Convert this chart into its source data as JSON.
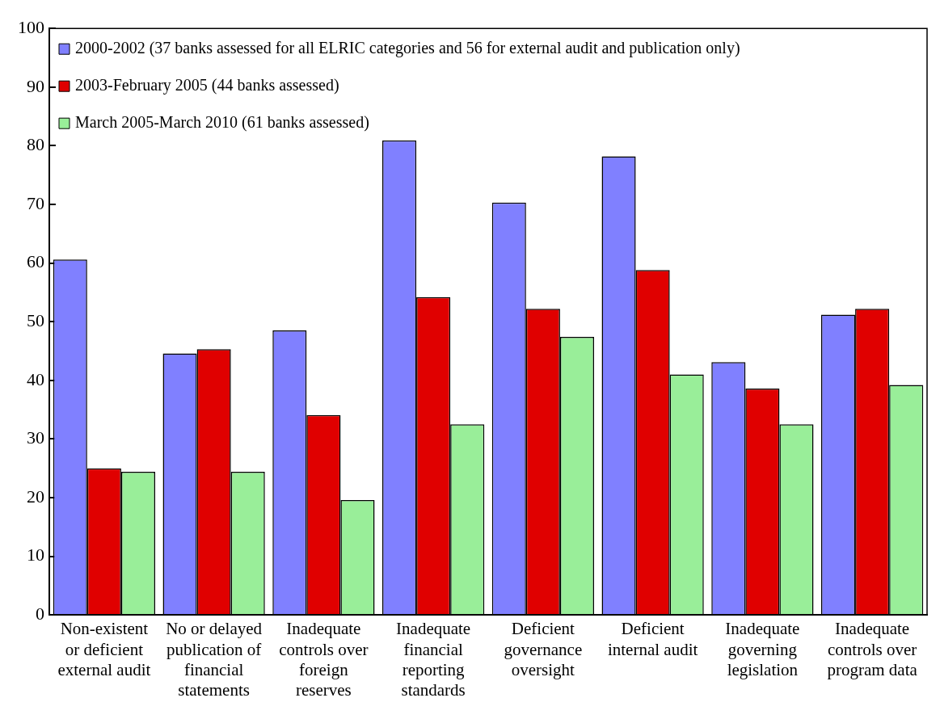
{
  "chart_data": {
    "type": "bar",
    "categories": [
      "Non-existent or deficient external audit",
      "No or delayed publication of financial statements",
      "Inadequate controls over foreign reserves",
      "Inadequate financial reporting standards",
      "Deficient governance oversight",
      "Deficient internal audit",
      "Inadequate governing legislation",
      "Inadequate controls over program data"
    ],
    "series": [
      {
        "name": "2000-2002 (37 banks assessed for all ELRIC categories and 56 for external audit and publication only)",
        "color": "#8080ff",
        "values": [
          60.6,
          44.6,
          48.5,
          80.9,
          70.3,
          78.2,
          43.1,
          51.2
        ]
      },
      {
        "name": "2003-February 2005 (44 banks assessed)",
        "color": "#e00000",
        "values": [
          25.0,
          45.3,
          34.1,
          54.2,
          52.2,
          58.8,
          38.6,
          52.2
        ]
      },
      {
        "name": "March 2005-March 2010 (61 banks assessed)",
        "color": "#99ee99",
        "values": [
          24.4,
          24.4,
          19.6,
          32.5,
          47.4,
          41.0,
          32.5,
          39.2
        ]
      }
    ],
    "ylim": [
      0,
      100
    ],
    "yticks": [
      0,
      10,
      20,
      30,
      40,
      50,
      60,
      70,
      80,
      90,
      100
    ],
    "grid": false,
    "legend": "top left"
  }
}
